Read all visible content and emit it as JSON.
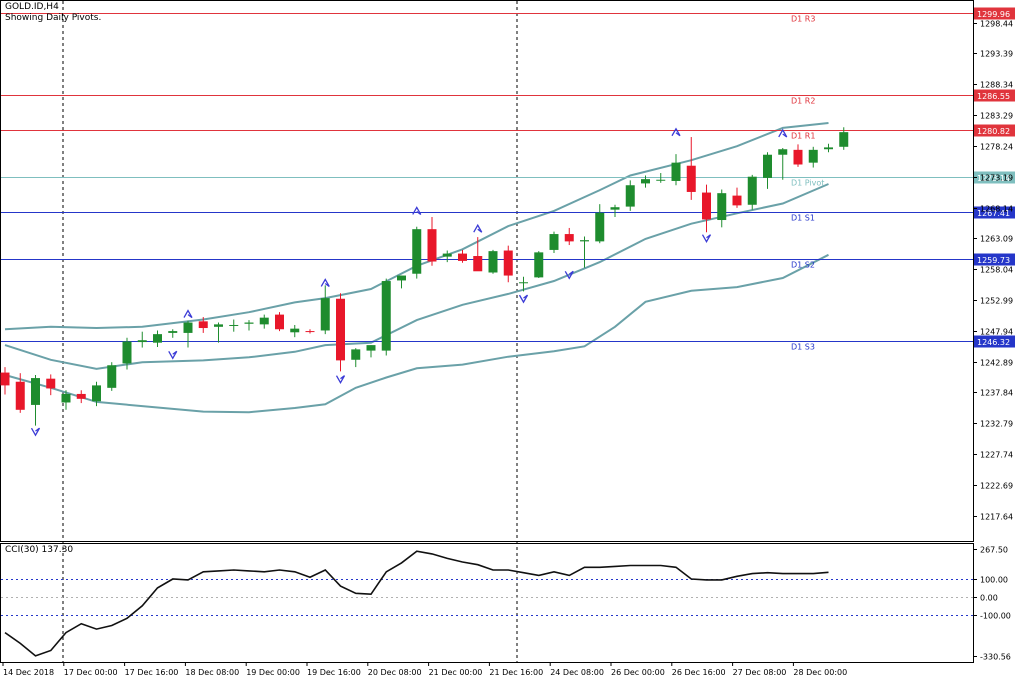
{
  "header": {
    "symbol": "GOLD.ID,H4",
    "subtitle": "Showing Daily Pivots."
  },
  "colors": {
    "background": "#ffffff",
    "bull": "#1e8c2e",
    "bear": "#e8172a",
    "bands": "#6aa1a8",
    "resistance": "#e0343c",
    "support": "#2536c9",
    "pivot": "#7fbfbf",
    "cci_line": "#111111",
    "fractal": "#3b3bd6",
    "axis": "#000000"
  },
  "price_axis": {
    "ticks": [
      "1298.44",
      "1293.39",
      "1288.34",
      "1283.29",
      "1278.24",
      "1273.19",
      "1268.14",
      "1263.09",
      "1258.04",
      "1252.99",
      "1247.94",
      "1242.89",
      "1237.84",
      "1232.79",
      "1227.74",
      "1222.69",
      "1217.64"
    ]
  },
  "pivots": [
    {
      "label": "D1 R3",
      "value": 1299.96,
      "tag": "1299.96",
      "kind": "resistance"
    },
    {
      "label": "D1 R2",
      "value": 1286.55,
      "tag": "1286.55",
      "kind": "resistance"
    },
    {
      "label": "D1 R1",
      "value": 1280.82,
      "tag": "1280.82",
      "kind": "resistance"
    },
    {
      "label": "D1 Pivot",
      "value": 1273.14,
      "tag": "1273.14",
      "kind": "pivot"
    },
    {
      "label": "D1 S1",
      "value": 1267.41,
      "tag": "1267.41",
      "kind": "support"
    },
    {
      "label": "D1 S2",
      "value": 1259.73,
      "tag": "1259.73",
      "kind": "support"
    },
    {
      "label": "D1 S3",
      "value": 1246.32,
      "tag": "1246.32",
      "kind": "support"
    }
  ],
  "cci": {
    "label": "CCI(30) 137.30",
    "ticks": [
      "267.50",
      "100.00",
      "0.00",
      "-100.00",
      "-330.56"
    ],
    "levels": [
      100,
      0,
      -100
    ]
  },
  "time_axis": {
    "labels": [
      "14 Dec 2018",
      "17 Dec 00:00",
      "17 Dec 16:00",
      "18 Dec 08:00",
      "19 Dec 00:00",
      "19 Dec 16:00",
      "20 Dec 08:00",
      "21 Dec 00:00",
      "21 Dec 16:00",
      "24 Dec 08:00",
      "26 Dec 00:00",
      "26 Dec 16:00",
      "27 Dec 08:00",
      "28 Dec 00:00"
    ]
  },
  "chart_data": {
    "type": "candlestick",
    "title": "GOLD.ID,H4",
    "ylim": [
      1213.5,
      1301.5
    ],
    "candles": [
      {
        "o": 1241.1,
        "h": 1242.0,
        "l": 1237.5,
        "c": 1239.0
      },
      {
        "o": 1239.6,
        "h": 1241.0,
        "l": 1234.5,
        "c": 1235.0
      },
      {
        "o": 1235.8,
        "h": 1240.7,
        "l": 1232.4,
        "c": 1240.2
      },
      {
        "o": 1240.1,
        "h": 1240.8,
        "l": 1237.4,
        "c": 1238.5
      },
      {
        "o": 1236.2,
        "h": 1238.2,
        "l": 1235.0,
        "c": 1237.6
      },
      {
        "o": 1237.6,
        "h": 1238.2,
        "l": 1236.1,
        "c": 1236.8
      },
      {
        "o": 1236.4,
        "h": 1239.6,
        "l": 1235.6,
        "c": 1239.0
      },
      {
        "o": 1238.6,
        "h": 1242.8,
        "l": 1238.1,
        "c": 1242.3
      },
      {
        "o": 1242.6,
        "h": 1246.8,
        "l": 1241.6,
        "c": 1246.2
      },
      {
        "o": 1246.1,
        "h": 1247.8,
        "l": 1245.2,
        "c": 1246.4
      },
      {
        "o": 1246.0,
        "h": 1248.0,
        "l": 1245.3,
        "c": 1247.4
      },
      {
        "o": 1247.6,
        "h": 1248.2,
        "l": 1246.8,
        "c": 1247.9
      },
      {
        "o": 1247.6,
        "h": 1249.6,
        "l": 1245.2,
        "c": 1249.3
      },
      {
        "o": 1249.5,
        "h": 1250.2,
        "l": 1247.6,
        "c": 1248.4
      },
      {
        "o": 1248.6,
        "h": 1249.3,
        "l": 1246.0,
        "c": 1249.0
      },
      {
        "o": 1248.9,
        "h": 1249.8,
        "l": 1247.8,
        "c": 1248.9
      },
      {
        "o": 1249.1,
        "h": 1249.7,
        "l": 1248.0,
        "c": 1249.3
      },
      {
        "o": 1249.0,
        "h": 1250.6,
        "l": 1248.3,
        "c": 1250.1
      },
      {
        "o": 1250.6,
        "h": 1251.0,
        "l": 1247.9,
        "c": 1248.2
      },
      {
        "o": 1247.7,
        "h": 1248.9,
        "l": 1246.9,
        "c": 1248.3
      },
      {
        "o": 1247.9,
        "h": 1248.2,
        "l": 1247.5,
        "c": 1247.8
      },
      {
        "o": 1248.0,
        "h": 1255.4,
        "l": 1247.4,
        "c": 1253.3
      },
      {
        "o": 1253.2,
        "h": 1254.1,
        "l": 1241.3,
        "c": 1243.1
      },
      {
        "o": 1243.2,
        "h": 1245.1,
        "l": 1242.0,
        "c": 1244.9
      },
      {
        "o": 1244.7,
        "h": 1245.6,
        "l": 1243.6,
        "c": 1245.6
      },
      {
        "o": 1244.7,
        "h": 1256.5,
        "l": 1243.9,
        "c": 1256.1
      },
      {
        "o": 1256.2,
        "h": 1257.0,
        "l": 1254.9,
        "c": 1257.0
      },
      {
        "o": 1257.3,
        "h": 1265.0,
        "l": 1256.5,
        "c": 1264.6
      },
      {
        "o": 1264.6,
        "h": 1266.6,
        "l": 1258.6,
        "c": 1259.3
      },
      {
        "o": 1260.1,
        "h": 1261.1,
        "l": 1259.2,
        "c": 1260.6
      },
      {
        "o": 1260.6,
        "h": 1261.2,
        "l": 1259.1,
        "c": 1259.4
      },
      {
        "o": 1260.2,
        "h": 1263.3,
        "l": 1258.0,
        "c": 1257.7
      },
      {
        "o": 1257.5,
        "h": 1261.2,
        "l": 1257.3,
        "c": 1261.0
      },
      {
        "o": 1261.1,
        "h": 1261.9,
        "l": 1255.9,
        "c": 1257.0
      },
      {
        "o": 1255.9,
        "h": 1256.8,
        "l": 1254.4,
        "c": 1255.9
      },
      {
        "o": 1256.7,
        "h": 1261.0,
        "l": 1256.6,
        "c": 1260.8
      },
      {
        "o": 1261.2,
        "h": 1264.2,
        "l": 1260.7,
        "c": 1263.8
      },
      {
        "o": 1263.8,
        "h": 1264.8,
        "l": 1262.0,
        "c": 1262.6
      },
      {
        "o": 1262.6,
        "h": 1263.4,
        "l": 1258.3,
        "c": 1262.8
      },
      {
        "o": 1262.6,
        "h": 1268.7,
        "l": 1262.3,
        "c": 1267.3
      },
      {
        "o": 1267.8,
        "h": 1268.6,
        "l": 1266.6,
        "c": 1268.2
      },
      {
        "o": 1268.3,
        "h": 1272.6,
        "l": 1267.6,
        "c": 1271.8
      },
      {
        "o": 1272.1,
        "h": 1273.4,
        "l": 1271.4,
        "c": 1272.8
      },
      {
        "o": 1272.6,
        "h": 1273.8,
        "l": 1272.2,
        "c": 1272.7
      },
      {
        "o": 1272.5,
        "h": 1276.9,
        "l": 1271.8,
        "c": 1275.5
      },
      {
        "o": 1275.0,
        "h": 1279.7,
        "l": 1269.4,
        "c": 1270.7
      },
      {
        "o": 1270.6,
        "h": 1271.9,
        "l": 1264.1,
        "c": 1266.2
      },
      {
        "o": 1266.1,
        "h": 1271.1,
        "l": 1264.9,
        "c": 1270.5
      },
      {
        "o": 1270.1,
        "h": 1271.4,
        "l": 1268.1,
        "c": 1268.5
      },
      {
        "o": 1268.6,
        "h": 1273.5,
        "l": 1267.8,
        "c": 1273.2
      },
      {
        "o": 1273.0,
        "h": 1277.2,
        "l": 1271.2,
        "c": 1276.8
      },
      {
        "o": 1276.8,
        "h": 1277.9,
        "l": 1272.7,
        "c": 1277.7
      },
      {
        "o": 1277.6,
        "h": 1278.5,
        "l": 1274.8,
        "c": 1275.2
      },
      {
        "o": 1275.5,
        "h": 1278.1,
        "l": 1274.7,
        "c": 1277.6
      },
      {
        "o": 1277.7,
        "h": 1278.6,
        "l": 1277.2,
        "c": 1278.0
      },
      {
        "o": 1278.1,
        "h": 1281.3,
        "l": 1277.6,
        "c": 1280.5
      }
    ],
    "bollinger": {
      "upper": [
        [
          0,
          1248.2
        ],
        [
          3,
          1248.6
        ],
        [
          6,
          1248.4
        ],
        [
          9,
          1248.6
        ],
        [
          13,
          1249.8
        ],
        [
          16,
          1251.0
        ],
        [
          19,
          1252.6
        ],
        [
          21,
          1253.3
        ],
        [
          24,
          1254.8
        ],
        [
          27,
          1258.6
        ],
        [
          30,
          1261.3
        ],
        [
          33,
          1265.1
        ],
        [
          36,
          1267.6
        ],
        [
          39,
          1271.0
        ],
        [
          41,
          1273.4
        ],
        [
          45,
          1275.9
        ],
        [
          48,
          1278.2
        ],
        [
          51,
          1281.2
        ],
        [
          54,
          1282.0
        ]
      ],
      "middle": [
        [
          0,
          1245.6
        ],
        [
          3,
          1243.2
        ],
        [
          6,
          1241.7
        ],
        [
          9,
          1242.8
        ],
        [
          13,
          1243.1
        ],
        [
          16,
          1243.6
        ],
        [
          19,
          1244.5
        ],
        [
          21,
          1245.6
        ],
        [
          24,
          1246.0
        ],
        [
          27,
          1249.7
        ],
        [
          30,
          1252.2
        ],
        [
          33,
          1254.0
        ],
        [
          36,
          1256.1
        ],
        [
          39,
          1259.2
        ],
        [
          42,
          1263.0
        ],
        [
          45,
          1265.5
        ],
        [
          48,
          1267.2
        ],
        [
          51,
          1268.8
        ],
        [
          54,
          1272.0
        ]
      ],
      "lower": [
        [
          0,
          1240.7
        ],
        [
          3,
          1238.6
        ],
        [
          6,
          1236.3
        ],
        [
          9,
          1235.6
        ],
        [
          13,
          1234.7
        ],
        [
          16,
          1234.6
        ],
        [
          19,
          1235.3
        ],
        [
          21,
          1235.9
        ],
        [
          23,
          1238.6
        ],
        [
          25,
          1240.3
        ],
        [
          27,
          1241.8
        ],
        [
          30,
          1242.4
        ],
        [
          33,
          1243.7
        ],
        [
          36,
          1244.6
        ],
        [
          38,
          1245.4
        ],
        [
          40,
          1248.6
        ],
        [
          42,
          1252.7
        ],
        [
          45,
          1254.5
        ],
        [
          48,
          1255.1
        ],
        [
          51,
          1256.6
        ],
        [
          54,
          1260.4
        ]
      ]
    },
    "fractals_up": [
      [
        12,
        1250.6
      ],
      [
        21,
        1255.7
      ],
      [
        27,
        1267.5
      ],
      [
        31,
        1264.6
      ],
      [
        44,
        1280.4
      ],
      [
        51,
        1280.2
      ]
    ],
    "fractals_down": [
      [
        2,
        1231.5
      ],
      [
        11,
        1244.1
      ],
      [
        22,
        1240.1
      ],
      [
        34,
        1253.3
      ],
      [
        37,
        1257.2
      ],
      [
        46,
        1263.2
      ]
    ],
    "cci_values": [
      [
        0,
        -200
      ],
      [
        1,
        -260
      ],
      [
        2,
        -330
      ],
      [
        3,
        -300
      ],
      [
        4,
        -200
      ],
      [
        5,
        -150
      ],
      [
        6,
        -180
      ],
      [
        7,
        -160
      ],
      [
        8,
        -120
      ],
      [
        9,
        -50
      ],
      [
        10,
        50
      ],
      [
        11,
        100
      ],
      [
        12,
        95
      ],
      [
        13,
        140
      ],
      [
        14,
        145
      ],
      [
        15,
        150
      ],
      [
        16,
        145
      ],
      [
        17,
        140
      ],
      [
        18,
        150
      ],
      [
        19,
        140
      ],
      [
        20,
        110
      ],
      [
        21,
        150
      ],
      [
        22,
        60
      ],
      [
        23,
        20
      ],
      [
        24,
        15
      ],
      [
        25,
        140
      ],
      [
        26,
        190
      ],
      [
        27,
        255
      ],
      [
        28,
        240
      ],
      [
        29,
        215
      ],
      [
        30,
        195
      ],
      [
        31,
        180
      ],
      [
        32,
        150
      ],
      [
        33,
        150
      ],
      [
        34,
        135
      ],
      [
        35,
        120
      ],
      [
        36,
        140
      ],
      [
        37,
        120
      ],
      [
        38,
        165
      ],
      [
        39,
        165
      ],
      [
        40,
        170
      ],
      [
        41,
        175
      ],
      [
        42,
        175
      ],
      [
        43,
        175
      ],
      [
        44,
        165
      ],
      [
        45,
        100
      ],
      [
        46,
        95
      ],
      [
        47,
        95
      ],
      [
        48,
        115
      ],
      [
        49,
        130
      ],
      [
        50,
        135
      ],
      [
        51,
        130
      ],
      [
        52,
        130
      ],
      [
        53,
        130
      ],
      [
        54,
        137.3
      ]
    ]
  }
}
